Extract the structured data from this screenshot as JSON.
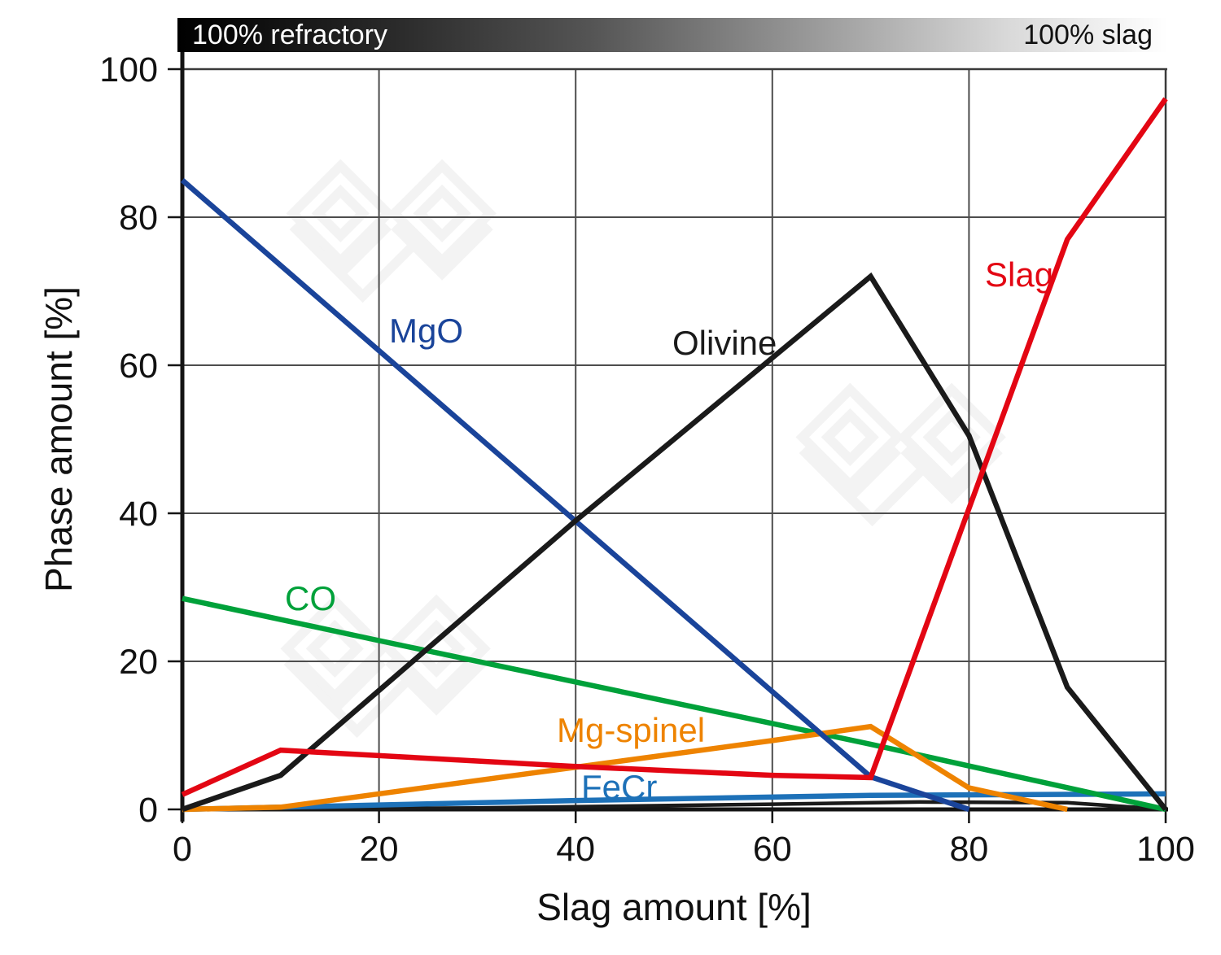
{
  "top_bar": {
    "left_label": "100% refractory",
    "right_label": "100% slag"
  },
  "axes": {
    "x_title": "Slag amount [%]",
    "y_title": "Phase amount [%]",
    "x_ticks": [
      0,
      20,
      40,
      60,
      80,
      100
    ],
    "y_ticks": [
      0,
      20,
      40,
      60,
      80,
      100
    ]
  },
  "chart_data": {
    "type": "line",
    "title": "",
    "xlabel": "Slag amount [%]",
    "ylabel": "Phase amount [%]",
    "xlim": [
      0,
      100
    ],
    "ylim": [
      0,
      100
    ],
    "grid": true,
    "legend_position": "inline-labels",
    "series": [
      {
        "name": "MgO",
        "label": "MgO",
        "color": "#1a449a",
        "points": [
          [
            0,
            85
          ],
          [
            70,
            4.4
          ],
          [
            80,
            0
          ]
        ]
      },
      {
        "name": "Olivine",
        "label": "Olivine",
        "color": "#1a1a1a",
        "points": [
          [
            0,
            0
          ],
          [
            10,
            4.6
          ],
          [
            40,
            39
          ],
          [
            70,
            72
          ],
          [
            80,
            50.5
          ],
          [
            90,
            16.5
          ],
          [
            100,
            0
          ]
        ]
      },
      {
        "name": "Slag",
        "label": "Slag",
        "color": "#e30613",
        "points": [
          [
            0,
            2
          ],
          [
            10,
            8
          ],
          [
            40,
            5.8
          ],
          [
            60,
            4.6
          ],
          [
            70,
            4.3
          ],
          [
            90,
            77
          ],
          [
            100,
            96
          ]
        ]
      },
      {
        "name": "CO",
        "label": "CO",
        "color": "#00a13a",
        "points": [
          [
            0,
            28.5
          ],
          [
            20,
            22.8
          ],
          [
            70,
            8.8
          ],
          [
            100,
            0
          ]
        ]
      },
      {
        "name": "Mg-spinel",
        "label": "Mg-spinel",
        "color": "#ee8300",
        "points": [
          [
            0,
            0
          ],
          [
            10,
            0.3
          ],
          [
            40,
            5.7
          ],
          [
            60,
            9.3
          ],
          [
            70,
            11.2
          ],
          [
            80,
            2.9
          ],
          [
            90,
            0
          ]
        ]
      },
      {
        "name": "FeCr",
        "label": "FeCr",
        "color": "#1d71b8",
        "points": [
          [
            0,
            0
          ],
          [
            40,
            1.2
          ],
          [
            70,
            1.9
          ],
          [
            100,
            2.1
          ]
        ]
      },
      {
        "name": "minor-unlabeled-black",
        "label": "",
        "color": "#1a1a1a",
        "points": [
          [
            0,
            0
          ],
          [
            30,
            0.2
          ],
          [
            60,
            0.7
          ],
          [
            75,
            1.0
          ],
          [
            90,
            0.9
          ],
          [
            100,
            0
          ]
        ]
      }
    ]
  },
  "watermark": {
    "name": "diamond-logo-watermark",
    "color": "#f3f3f3"
  }
}
